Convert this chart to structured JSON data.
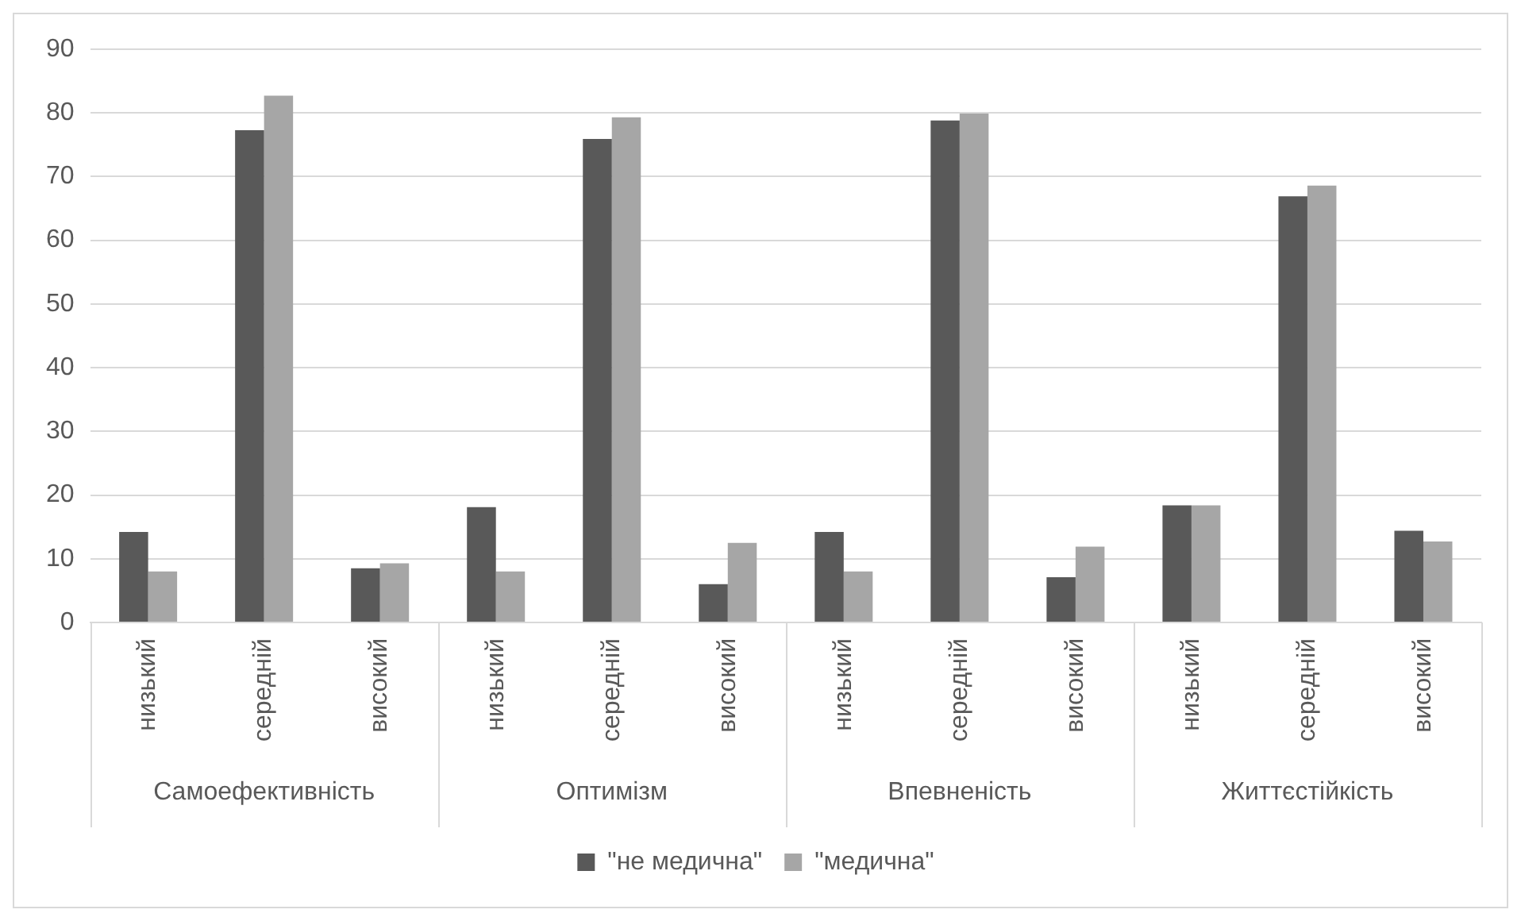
{
  "chart_data": {
    "type": "bar",
    "categories": [
      "низький",
      "середній",
      "високий",
      "низький",
      "середній",
      "високий",
      "низький",
      "середній",
      "високий",
      "низький",
      "середній",
      "високий"
    ],
    "annotations": [
      "Самоефективність",
      "Оптимізм",
      "Впевненість",
      "Життєстійкість"
    ],
    "series": [
      {
        "name": "\"не медична\"",
        "color": "#595959",
        "values": [
          14.2,
          77.3,
          8.5,
          18.1,
          75.9,
          6,
          14.2,
          78.8,
          7.1,
          18.4,
          66.9,
          14.4
        ]
      },
      {
        "name": "\"медична\"",
        "color": "#a6a6a6",
        "values": [
          8,
          82.7,
          9.3,
          8,
          79.3,
          12.5,
          8,
          79.9,
          11.9,
          18.4,
          68.6,
          12.7
        ]
      }
    ],
    "ylim": [
      0,
      90
    ],
    "yticks": [
      0,
      10,
      20,
      30,
      40,
      50,
      60,
      70,
      80,
      90
    ],
    "grid": "y",
    "legend": "bottom"
  }
}
